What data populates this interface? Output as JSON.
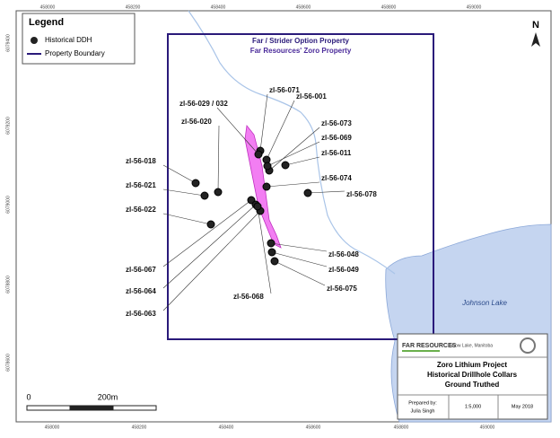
{
  "legend": {
    "title": "Legend",
    "items": [
      "Historical DDH",
      "Property Boundary"
    ]
  },
  "property_labels": [
    "Far / Strider Option Property",
    "Far Resources' Zoro Property"
  ],
  "grid": {
    "top": [
      "458000",
      "458200",
      "458400",
      "458600",
      "458800",
      "459000"
    ],
    "bottom": [
      "458000",
      "458200",
      "458400",
      "458600",
      "458800",
      "459000"
    ],
    "left": [
      "6079400",
      "6079200",
      "6079000",
      "6078800",
      "6078600"
    ]
  },
  "north": "N",
  "lake": "Johnson Lake",
  "holes": [
    {
      "label": "zl-56-071"
    },
    {
      "label": "zl-56-001"
    },
    {
      "label": "zl-56-029 / 032"
    },
    {
      "label": "zl-56-020"
    },
    {
      "label": "zl-56-073"
    },
    {
      "label": "zl-56-069"
    },
    {
      "label": "zl-56-011"
    },
    {
      "label": "zl-56-018"
    },
    {
      "label": "zl-56-074"
    },
    {
      "label": "zl-56-078"
    },
    {
      "label": "zl-56-021"
    },
    {
      "label": "zl-56-022"
    },
    {
      "label": "zl-56-048"
    },
    {
      "label": "zl-56-049"
    },
    {
      "label": "zl-56-075"
    },
    {
      "label": "zl-56-067"
    },
    {
      "label": "zl-56-064"
    },
    {
      "label": "zl-56-063"
    },
    {
      "label": "zl-56-068"
    }
  ],
  "scale_bar": {
    "start": "0",
    "end": "200m"
  },
  "title_block": {
    "company": "FAR RESOURCES",
    "location": "Snow Lake, Manitoba",
    "title": [
      "Zoro Lithium Project",
      "Historical Drillhole Collars",
      "Ground Truthed"
    ],
    "prepared_label": "Prepared by:",
    "prepared_by": "Julia Singh",
    "scale": "1:5,000",
    "date": "May 2018"
  }
}
